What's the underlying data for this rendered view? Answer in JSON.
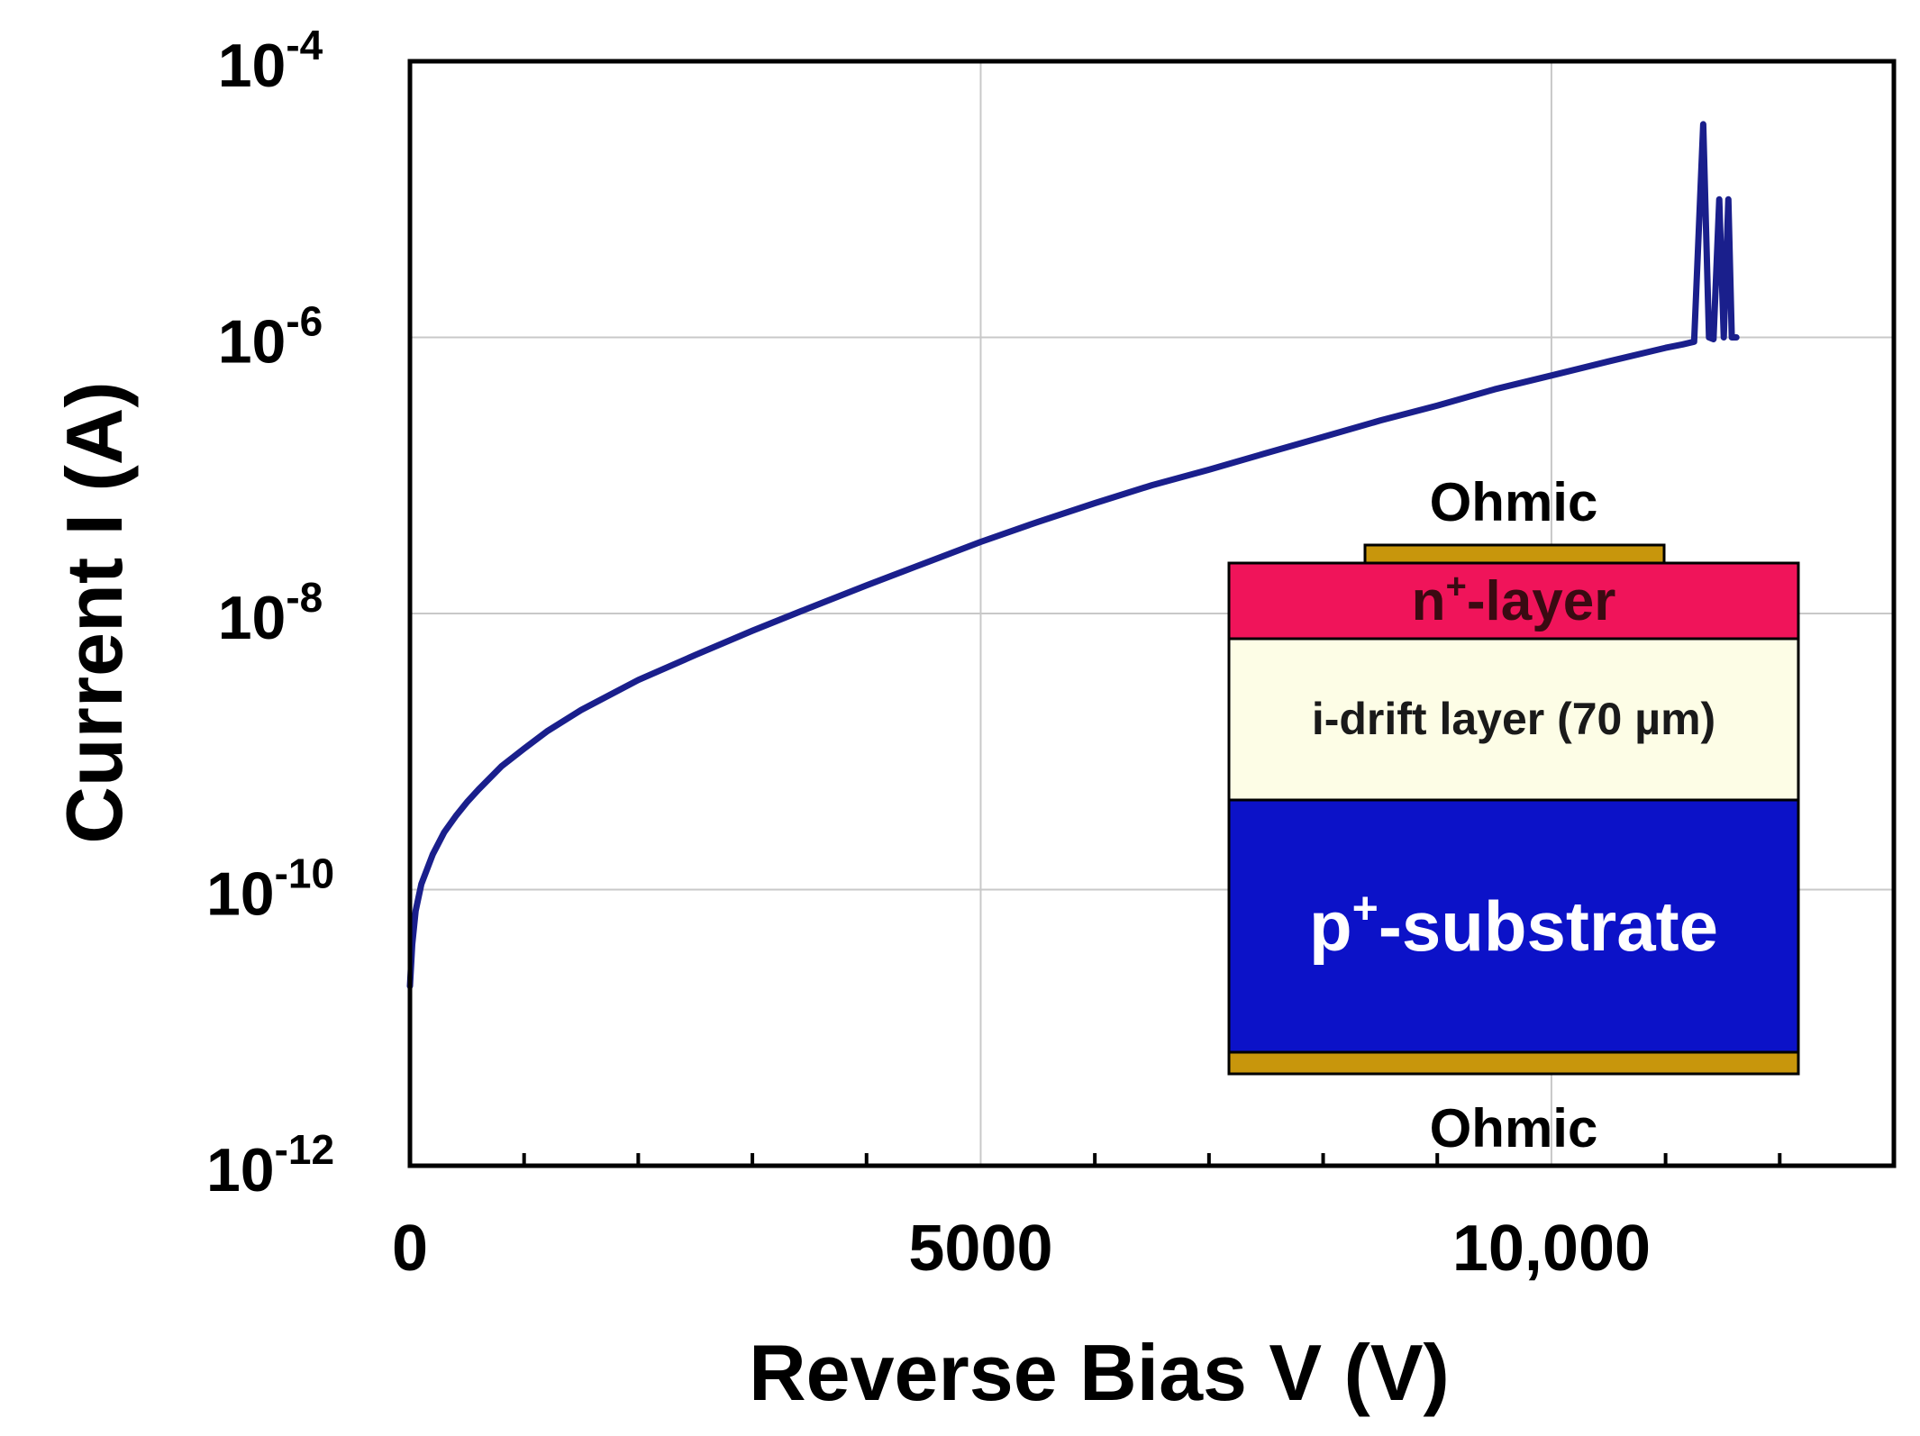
{
  "chart_data": {
    "type": "line",
    "title": "",
    "xlabel": "Reverse Bias V (V)",
    "ylabel": "Current I (A)",
    "xlim": [
      0,
      13000
    ],
    "ylim": [
      1e-12,
      0.0001
    ],
    "y_scale": "log",
    "grid": true,
    "x_ticks": [
      {
        "value": 0,
        "label": "0"
      },
      {
        "value": 5000,
        "label": "5000"
      },
      {
        "value": 10000,
        "label": "10,000"
      }
    ],
    "x_minor_ticks": [
      1000,
      2000,
      3000,
      4000,
      6000,
      7000,
      8000,
      9000,
      11000,
      12000
    ],
    "y_ticks": [
      {
        "value": 1e-12,
        "base": "10",
        "exp": "-12"
      },
      {
        "value": 1e-10,
        "base": "10",
        "exp": "-10"
      },
      {
        "value": 1e-08,
        "base": "10",
        "exp": "-8"
      },
      {
        "value": 1e-06,
        "base": "10",
        "exp": "-6"
      },
      {
        "value": 0.0001,
        "base": "10",
        "exp": "-4"
      }
    ],
    "series": [
      {
        "name": "",
        "color": "#1a1f8c",
        "points": [
          [
            0,
            2e-11
          ],
          [
            20,
            4e-11
          ],
          [
            50,
            7e-11
          ],
          [
            100,
            1.1e-10
          ],
          [
            200,
            1.8e-10
          ],
          [
            300,
            2.6e-10
          ],
          [
            400,
            3.4e-10
          ],
          [
            500,
            4.3e-10
          ],
          [
            600,
            5.3e-10
          ],
          [
            800,
            7.8e-10
          ],
          [
            1000,
            1.05e-09
          ],
          [
            1200,
            1.4e-09
          ],
          [
            1500,
            2e-09
          ],
          [
            2000,
            3.3e-09
          ],
          [
            2500,
            5e-09
          ],
          [
            3000,
            7.5e-09
          ],
          [
            3500,
            1.1e-08
          ],
          [
            4000,
            1.6e-08
          ],
          [
            4500,
            2.3e-08
          ],
          [
            5000,
            3.3e-08
          ],
          [
            5500,
            4.6e-08
          ],
          [
            6000,
            6.3e-08
          ],
          [
            6500,
            8.5e-08
          ],
          [
            7000,
            1.1e-07
          ],
          [
            7500,
            1.45e-07
          ],
          [
            8000,
            1.9e-07
          ],
          [
            8500,
            2.5e-07
          ],
          [
            9000,
            3.2e-07
          ],
          [
            9500,
            4.2e-07
          ],
          [
            10000,
            5.3e-07
          ],
          [
            10500,
            6.7e-07
          ],
          [
            11000,
            8.4e-07
          ],
          [
            11150,
            8.9e-07
          ],
          [
            11250,
            9.3e-07
          ],
          [
            11330,
            3.5e-05
          ],
          [
            11380,
            1e-06
          ],
          [
            11420,
            9.7e-07
          ],
          [
            11470,
            1e-05
          ],
          [
            11510,
            1e-06
          ],
          [
            11550,
            1e-05
          ],
          [
            11580,
            1e-06
          ],
          [
            11620,
            1e-06
          ]
        ]
      }
    ]
  },
  "inset": {
    "top_contact_label": "Ohmic",
    "bottom_contact_label": "Ohmic",
    "n_layer_label": {
      "base": "n",
      "sup": "+",
      "rest": "-layer"
    },
    "drift_layer_label": "i-drift layer (70 µm)",
    "substrate_label": {
      "base": "p",
      "sup": "+",
      "rest": "-substrate"
    },
    "colors": {
      "contact": "#c8960c",
      "n_layer": "#f0145a",
      "n_layer_text": "#3a0a12",
      "drift_layer": "#fdfde6",
      "drift_text": "#1a1a1a",
      "substrate": "#0c12c8",
      "substrate_text": "#ffffff"
    }
  }
}
